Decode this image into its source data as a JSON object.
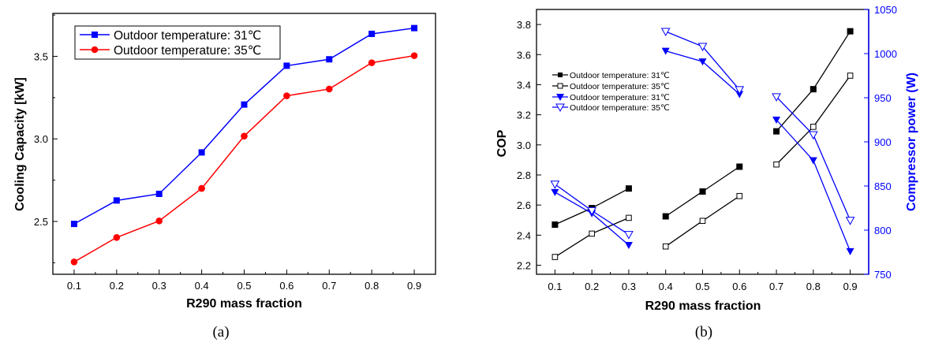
{
  "chart_data": [
    {
      "panel_label": "(a)",
      "type": "line",
      "xlabel": "R290 mass fraction",
      "ylabel": "Cooling Capacity [kW]",
      "xlim": [
        0.05,
        0.95
      ],
      "ylim": [
        2.18,
        3.76
      ],
      "x_ticks": [
        "0.1",
        "0.2",
        "0.3",
        "0.4",
        "0.5",
        "0.6",
        "0.7",
        "0.8",
        "0.9"
      ],
      "y_ticks": [
        "2.5",
        "3.0",
        "3.5"
      ],
      "x": [
        0.1,
        0.2,
        0.3,
        0.4,
        0.5,
        0.6,
        0.7,
        0.8,
        0.9
      ],
      "legend_position": "top-left",
      "grid": false,
      "series": [
        {
          "name": "Outdoor temperature: 31℃",
          "color": "#0000ff",
          "marker": "square-filled",
          "values": [
            2.485,
            2.627,
            2.667,
            2.918,
            3.208,
            3.443,
            3.482,
            3.636,
            3.671
          ]
        },
        {
          "name": "Outdoor temperature: 35℃",
          "color": "#ff0000",
          "marker": "circle-filled",
          "values": [
            2.255,
            2.403,
            2.503,
            2.7,
            3.017,
            3.261,
            3.302,
            3.461,
            3.504
          ]
        }
      ]
    },
    {
      "panel_label": "(b)",
      "type": "line",
      "xlabel": "R290 mass fraction",
      "ylabel": "COP",
      "y2label": "Compressor power (W)",
      "xlim": [
        0.05,
        0.95
      ],
      "ylim": [
        2.14,
        3.9
      ],
      "y2lim": [
        750,
        1050
      ],
      "x_ticks": [
        "0.1",
        "0.2",
        "0.3",
        "0.4",
        "0.5",
        "0.6",
        "0.7",
        "0.8",
        "0.9"
      ],
      "y_ticks": [
        "2.2",
        "2.4",
        "2.6",
        "2.8",
        "3.0",
        "3.2",
        "3.4",
        "3.6",
        "3.8"
      ],
      "y2_ticks": [
        "750",
        "800",
        "850",
        "900",
        "950",
        "1000",
        "1050"
      ],
      "groups": [
        [
          0.1,
          0.2,
          0.3
        ],
        [
          0.4,
          0.5,
          0.6
        ],
        [
          0.7,
          0.8,
          0.9
        ]
      ],
      "legend_position": "top-left",
      "grid": false,
      "series": [
        {
          "name": "Outdoor temperature: 31℃",
          "axis": "left",
          "color": "#000000",
          "marker": "square-filled",
          "x": [
            0.1,
            0.2,
            0.3,
            0.4,
            0.5,
            0.6,
            0.7,
            0.8,
            0.9
          ],
          "values": [
            2.47,
            2.58,
            2.71,
            2.525,
            2.69,
            2.855,
            3.09,
            3.37,
            3.755
          ]
        },
        {
          "name": "Outdoor temperature: 35℃",
          "axis": "left",
          "color": "#000000",
          "marker": "square-open",
          "x": [
            0.1,
            0.2,
            0.3,
            0.4,
            0.5,
            0.6,
            0.7,
            0.8,
            0.9
          ],
          "values": [
            2.255,
            2.41,
            2.515,
            2.325,
            2.495,
            2.66,
            2.87,
            3.12,
            3.46
          ]
        },
        {
          "name": "Outdoor temperature: 31℃",
          "axis": "right",
          "color": "#0000ff",
          "marker": "triangle-down-filled",
          "x": [
            0.1,
            0.2,
            0.3,
            0.4,
            0.5,
            0.6,
            0.7,
            0.8,
            0.9
          ],
          "values": [
            843,
            819,
            783,
            1003,
            991,
            954,
            925,
            879,
            776
          ]
        },
        {
          "name": "Outdoor temperature: 35℃",
          "axis": "right",
          "color": "#0000ff",
          "marker": "triangle-down-open",
          "x": [
            0.1,
            0.2,
            0.3,
            0.4,
            0.5,
            0.6,
            0.7,
            0.8,
            0.9
          ],
          "values": [
            852,
            822,
            795,
            1025,
            1008,
            959,
            951,
            908,
            811
          ]
        }
      ]
    }
  ]
}
